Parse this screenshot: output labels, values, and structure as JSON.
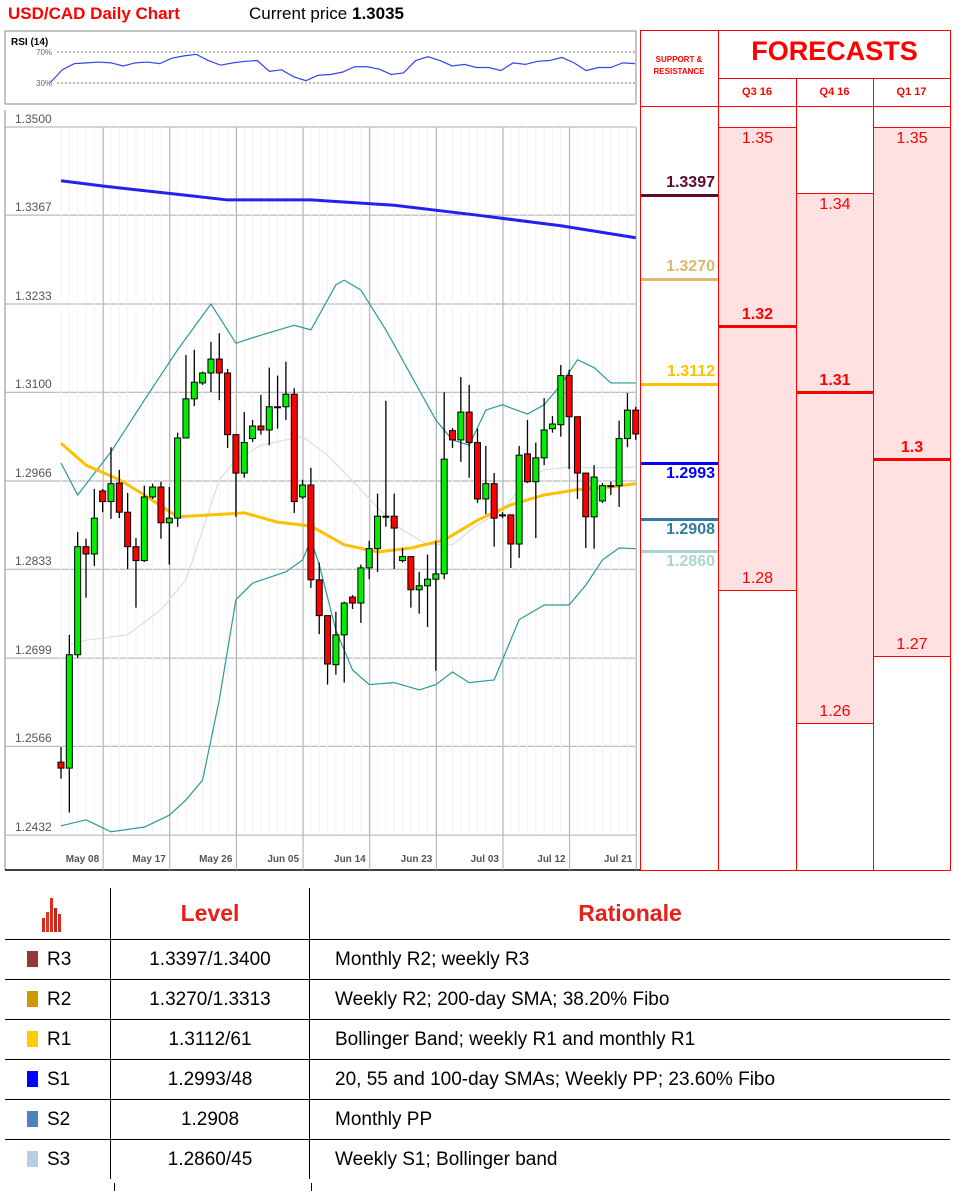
{
  "header": {
    "title": "USD/CAD Daily Chart",
    "current_price_label": "Current price",
    "current_price": "1.3035"
  },
  "rsi": {
    "label": "RSI (14)",
    "level_high": "70%",
    "level_low": "30%",
    "values": [
      30,
      47,
      55,
      56,
      57,
      56,
      52,
      56,
      57,
      55,
      62,
      65,
      67,
      59,
      53,
      56,
      58,
      59,
      45,
      47,
      38,
      33,
      40,
      41,
      44,
      51,
      51,
      48,
      41,
      43,
      59,
      64,
      59,
      52,
      54,
      50,
      50,
      46,
      56,
      54,
      58,
      59,
      63,
      56,
      46,
      50,
      50,
      56,
      55
    ]
  },
  "forecast_panel": {
    "sr_header": "SUPPORT & RESISTANCE",
    "title": "FORECASTS",
    "sr_levels": [
      {
        "value": "1.3397",
        "price": 1.3397,
        "color": "#5c0b2e"
      },
      {
        "value": "1.3270",
        "price": 1.327,
        "color": "#dcb96f"
      },
      {
        "value": "1.3112",
        "price": 1.3112,
        "color": "#ffc000"
      },
      {
        "value": "1.2993",
        "price": 1.2993,
        "color": "#0000ff"
      },
      {
        "value": "1.2908",
        "price": 1.2908,
        "color": "#31799e"
      },
      {
        "value": "1.2860",
        "price": 1.286,
        "color": "#a9d4d1"
      }
    ],
    "quarters": [
      {
        "label": "Q3 16",
        "high": "1.35",
        "mid": "1.32",
        "low": "1.28",
        "high_v": 1.35,
        "mid_v": 1.32,
        "low_v": 1.28
      },
      {
        "label": "Q4 16",
        "high": "1.34",
        "mid": "1.31",
        "low": "1.26",
        "high_v": 1.34,
        "mid_v": 1.31,
        "low_v": 1.26
      },
      {
        "label": "Q1 17",
        "high": "1.35",
        "mid": "1.3",
        "low": "1.27",
        "high_v": 1.35,
        "mid_v": 1.3,
        "low_v": 1.27
      }
    ]
  },
  "table": {
    "icon": "bar-chart-icon",
    "headers": {
      "level": "Level",
      "rationale": "Rationale"
    },
    "rows": [
      {
        "name": "R3",
        "level": "1.3397/1.3400",
        "rationale": "Monthly R2; weekly R3",
        "color": "#953735"
      },
      {
        "name": "R2",
        "level": "1.3270/1.3313",
        "rationale": "Weekly R2; 200-day SMA; 38.20% Fibo",
        "color": "#cc9900"
      },
      {
        "name": "R1",
        "level": "1.3112/61",
        "rationale": "Bollinger Band; weekly R1 and monthly R1",
        "color": "#ffcc00"
      },
      {
        "name": "S1",
        "level": "1.2993/48",
        "rationale": "20, 55 and 100-day SMAs; Weekly PP; 23.60% Fibo",
        "color": "#0000ff"
      },
      {
        "name": "S2",
        "level": "1.2908",
        "rationale": "Monthly PP",
        "color": "#4f81bd"
      },
      {
        "name": "S3",
        "level": "1.2860/45",
        "rationale": "Weekly S1; Bollinger band",
        "color": "#b9cde5"
      }
    ]
  },
  "chart_data": {
    "type": "candlestick",
    "title": "USD/CAD Daily Chart",
    "ylim": [
      1.2432,
      1.35
    ],
    "y_ticks": [
      "1.3500",
      "1.3367",
      "1.3233",
      "1.3100",
      "1.2966",
      "1.2833",
      "1.2699",
      "1.2566",
      "1.2432"
    ],
    "x_ticks": [
      {
        "index": 5,
        "label": "May 08"
      },
      {
        "index": 13,
        "label": "May 17"
      },
      {
        "index": 21,
        "label": "May 26"
      },
      {
        "index": 29,
        "label": "Jun 05"
      },
      {
        "index": 37,
        "label": "Jun 14"
      },
      {
        "index": 45,
        "label": "Jun 23"
      },
      {
        "index": 53,
        "label": "Jul 03"
      },
      {
        "index": 61,
        "label": "Jul 12"
      },
      {
        "index": 69,
        "label": "Jul 21"
      }
    ],
    "grid": true,
    "colors": {
      "up": "#00ee00",
      "down": "#ff0000",
      "sma200": "#2222ee",
      "sma55": "#ffc000",
      "bollinger": "#2a9a96",
      "sma20": "#dddddd"
    },
    "candles_ohlc": [
      [
        1.2542,
        1.2565,
        1.2517,
        1.2533
      ],
      [
        1.2533,
        1.2734,
        1.2466,
        1.2704
      ],
      [
        1.2704,
        1.2889,
        1.2699,
        1.2867
      ],
      [
        1.2867,
        1.2879,
        1.279,
        1.2856
      ],
      [
        1.2856,
        1.2954,
        1.2838,
        1.291
      ],
      [
        1.2951,
        1.2954,
        1.2919,
        1.2935
      ],
      [
        1.2935,
        1.3017,
        1.2909,
        1.2962
      ],
      [
        1.2963,
        1.2983,
        1.291,
        1.2919
      ],
      [
        1.2919,
        1.2948,
        1.2833,
        1.2867
      ],
      [
        1.2867,
        1.288,
        1.2775,
        1.2846
      ],
      [
        1.2846,
        1.2959,
        1.2844,
        1.2942
      ],
      [
        1.2942,
        1.2962,
        1.2939,
        1.2957
      ],
      [
        1.2957,
        1.2965,
        1.2879,
        1.2903
      ],
      [
        1.2903,
        1.2957,
        1.284,
        1.291
      ],
      [
        1.291,
        1.3039,
        1.2897,
        1.3031
      ],
      [
        1.3031,
        1.3156,
        1.3031,
        1.309
      ],
      [
        1.309,
        1.3164,
        1.3079,
        1.3115
      ],
      [
        1.3114,
        1.3131,
        1.3111,
        1.3129
      ],
      [
        1.3129,
        1.3176,
        1.31,
        1.315
      ],
      [
        1.315,
        1.3189,
        1.3088,
        1.3129
      ],
      [
        1.3129,
        1.3135,
        1.3016,
        1.3036
      ],
      [
        1.3036,
        1.3036,
        1.2912,
        1.2978
      ],
      [
        1.2978,
        1.307,
        1.2971,
        1.3024
      ],
      [
        1.303,
        1.3058,
        1.3025,
        1.3049
      ],
      [
        1.3049,
        1.3096,
        1.3036,
        1.3043
      ],
      [
        1.3043,
        1.3137,
        1.302,
        1.3078
      ],
      [
        1.3078,
        1.3125,
        1.3045,
        1.3078
      ],
      [
        1.3078,
        1.3146,
        1.3058,
        1.3097
      ],
      [
        1.3097,
        1.3106,
        1.2918,
        1.2935
      ],
      [
        1.2942,
        1.2968,
        1.2939,
        1.296
      ],
      [
        1.296,
        1.2986,
        1.2805,
        1.2817
      ],
      [
        1.2817,
        1.2843,
        1.2735,
        1.2763
      ],
      [
        1.2763,
        1.2763,
        1.2659,
        1.269
      ],
      [
        1.2689,
        1.2769,
        1.2674,
        1.2734
      ],
      [
        1.2734,
        1.2784,
        1.2662,
        1.2782
      ],
      [
        1.2791,
        1.2794,
        1.2773,
        1.2782
      ],
      [
        1.2782,
        1.284,
        1.2752,
        1.2835
      ],
      [
        1.2835,
        1.2876,
        1.2818,
        1.2864
      ],
      [
        1.2864,
        1.2947,
        1.2829,
        1.2913
      ],
      [
        1.2913,
        1.3087,
        1.2897,
        1.2913
      ],
      [
        1.2913,
        1.2947,
        1.2833,
        1.2895
      ],
      [
        1.2846,
        1.2865,
        1.2843,
        1.2852
      ],
      [
        1.2852,
        1.2852,
        1.2775,
        1.2802
      ],
      [
        1.2802,
        1.2829,
        1.2766,
        1.2808
      ],
      [
        1.2808,
        1.2855,
        1.2746,
        1.2818
      ],
      [
        1.2818,
        1.2876,
        1.268,
        1.2826
      ],
      [
        1.2826,
        1.31,
        1.2818,
        1.2999
      ],
      [
        1.3042,
        1.3046,
        1.3016,
        1.3028
      ],
      [
        1.3028,
        1.3123,
        1.2995,
        1.307
      ],
      [
        1.307,
        1.3111,
        1.2971,
        1.3024
      ],
      [
        1.3024,
        1.3045,
        1.2933,
        1.2939
      ],
      [
        1.2939,
        1.3019,
        1.2916,
        1.2962
      ],
      [
        1.2962,
        1.2978,
        1.2867,
        1.291
      ],
      [
        1.2915,
        1.2919,
        1.291,
        1.2915
      ],
      [
        1.2915,
        1.2915,
        1.2835,
        1.2871
      ],
      [
        1.2871,
        1.3019,
        1.285,
        1.3005
      ],
      [
        1.3007,
        1.3058,
        1.2963,
        1.2965
      ],
      [
        1.2965,
        1.3024,
        1.288,
        1.3001
      ],
      [
        1.3001,
        1.3091,
        1.299,
        1.3043
      ],
      [
        1.3045,
        1.3064,
        1.3039,
        1.3052
      ],
      [
        1.3051,
        1.3141,
        1.3033,
        1.3125
      ],
      [
        1.3125,
        1.3134,
        1.2984,
        1.3063
      ],
      [
        1.3063,
        1.3063,
        1.2939,
        1.2978
      ],
      [
        1.2978,
        1.2978,
        1.2865,
        1.2912
      ],
      [
        1.2912,
        1.299,
        1.2864,
        1.2972
      ],
      [
        1.2936,
        1.2963,
        1.2933,
        1.2959
      ],
      [
        1.2959,
        1.2965,
        1.2945,
        1.2959
      ],
      [
        1.2959,
        1.3057,
        1.2927,
        1.303
      ],
      [
        1.303,
        1.3099,
        1.3017,
        1.3073
      ],
      [
        1.3073,
        1.3078,
        1.3028,
        1.3037
      ]
    ],
    "lines": {
      "sma200": [
        [
          0,
          1.3419
        ],
        [
          5,
          1.3411
        ],
        [
          15,
          1.3397
        ],
        [
          20,
          1.339
        ],
        [
          30,
          1.339
        ],
        [
          40,
          1.3382
        ],
        [
          50,
          1.3367
        ],
        [
          60,
          1.3351
        ],
        [
          69,
          1.3333
        ]
      ],
      "sma55": [
        [
          0,
          1.3023
        ],
        [
          3,
          1.299
        ],
        [
          7,
          1.2968
        ],
        [
          10,
          1.2945
        ],
        [
          14,
          1.2912
        ],
        [
          18,
          1.2915
        ],
        [
          22,
          1.2918
        ],
        [
          26,
          1.2904
        ],
        [
          30,
          1.2898
        ],
        [
          34,
          1.287
        ],
        [
          38,
          1.2859
        ],
        [
          42,
          1.2865
        ],
        [
          46,
          1.2877
        ],
        [
          50,
          1.2907
        ],
        [
          54,
          1.293
        ],
        [
          58,
          1.2945
        ],
        [
          62,
          1.2953
        ],
        [
          66,
          1.2957
        ],
        [
          69,
          1.2962
        ]
      ],
      "bollinger_upper": [
        [
          0,
          1.2993
        ],
        [
          2,
          1.2945
        ],
        [
          6,
          1.301
        ],
        [
          10,
          1.3088
        ],
        [
          14,
          1.3164
        ],
        [
          18,
          1.3233
        ],
        [
          21,
          1.3174
        ],
        [
          24,
          1.3186
        ],
        [
          28,
          1.3201
        ],
        [
          30,
          1.3194
        ],
        [
          33,
          1.3262
        ],
        [
          34,
          1.3269
        ],
        [
          36,
          1.3254
        ],
        [
          39,
          1.3194
        ],
        [
          42,
          1.3126
        ],
        [
          45,
          1.3058
        ],
        [
          47,
          1.3028
        ],
        [
          49,
          1.302
        ],
        [
          51,
          1.3073
        ],
        [
          53,
          1.3081
        ],
        [
          56,
          1.3067
        ],
        [
          58,
          1.3081
        ],
        [
          60,
          1.3111
        ],
        [
          62,
          1.3149
        ],
        [
          64,
          1.3137
        ],
        [
          66,
          1.3114
        ],
        [
          69,
          1.3114
        ]
      ],
      "bollinger_lower": [
        [
          0,
          1.2446
        ],
        [
          3,
          1.2455
        ],
        [
          6,
          1.2437
        ],
        [
          10,
          1.2444
        ],
        [
          13,
          1.2462
        ],
        [
          15,
          1.2485
        ],
        [
          17,
          1.2515
        ],
        [
          19,
          1.2636
        ],
        [
          21,
          1.2787
        ],
        [
          23,
          1.2812
        ],
        [
          27,
          1.2829
        ],
        [
          29,
          1.2847
        ],
        [
          30,
          1.2877
        ],
        [
          31,
          1.284
        ],
        [
          33,
          1.2741
        ],
        [
          35,
          1.2681
        ],
        [
          37,
          1.2659
        ],
        [
          40,
          1.2662
        ],
        [
          43,
          1.2651
        ],
        [
          45,
          1.2659
        ],
        [
          47,
          1.2678
        ],
        [
          49,
          1.2662
        ],
        [
          52,
          1.2666
        ],
        [
          55,
          1.2757
        ],
        [
          58,
          1.2779
        ],
        [
          61,
          1.2779
        ],
        [
          63,
          1.2809
        ],
        [
          65,
          1.2847
        ],
        [
          67,
          1.2865
        ],
        [
          69,
          1.2864
        ]
      ],
      "sma20": [
        [
          1,
          1.2719
        ],
        [
          3,
          1.2726
        ],
        [
          8,
          1.2734
        ],
        [
          12,
          1.2772
        ],
        [
          15,
          1.2817
        ],
        [
          17,
          1.2892
        ],
        [
          19,
          1.2968
        ],
        [
          21,
          1.2998
        ],
        [
          24,
          1.302
        ],
        [
          27,
          1.3028
        ],
        [
          29,
          1.3033
        ],
        [
          32,
          1.3005
        ],
        [
          36,
          1.2953
        ],
        [
          40,
          1.29
        ],
        [
          44,
          1.287
        ],
        [
          47,
          1.287
        ],
        [
          50,
          1.29
        ],
        [
          53,
          1.2922
        ],
        [
          56,
          1.2968
        ],
        [
          58,
          1.2983
        ],
        [
          61,
          1.2987
        ],
        [
          64,
          1.2986
        ],
        [
          69,
          1.2987
        ]
      ]
    }
  }
}
